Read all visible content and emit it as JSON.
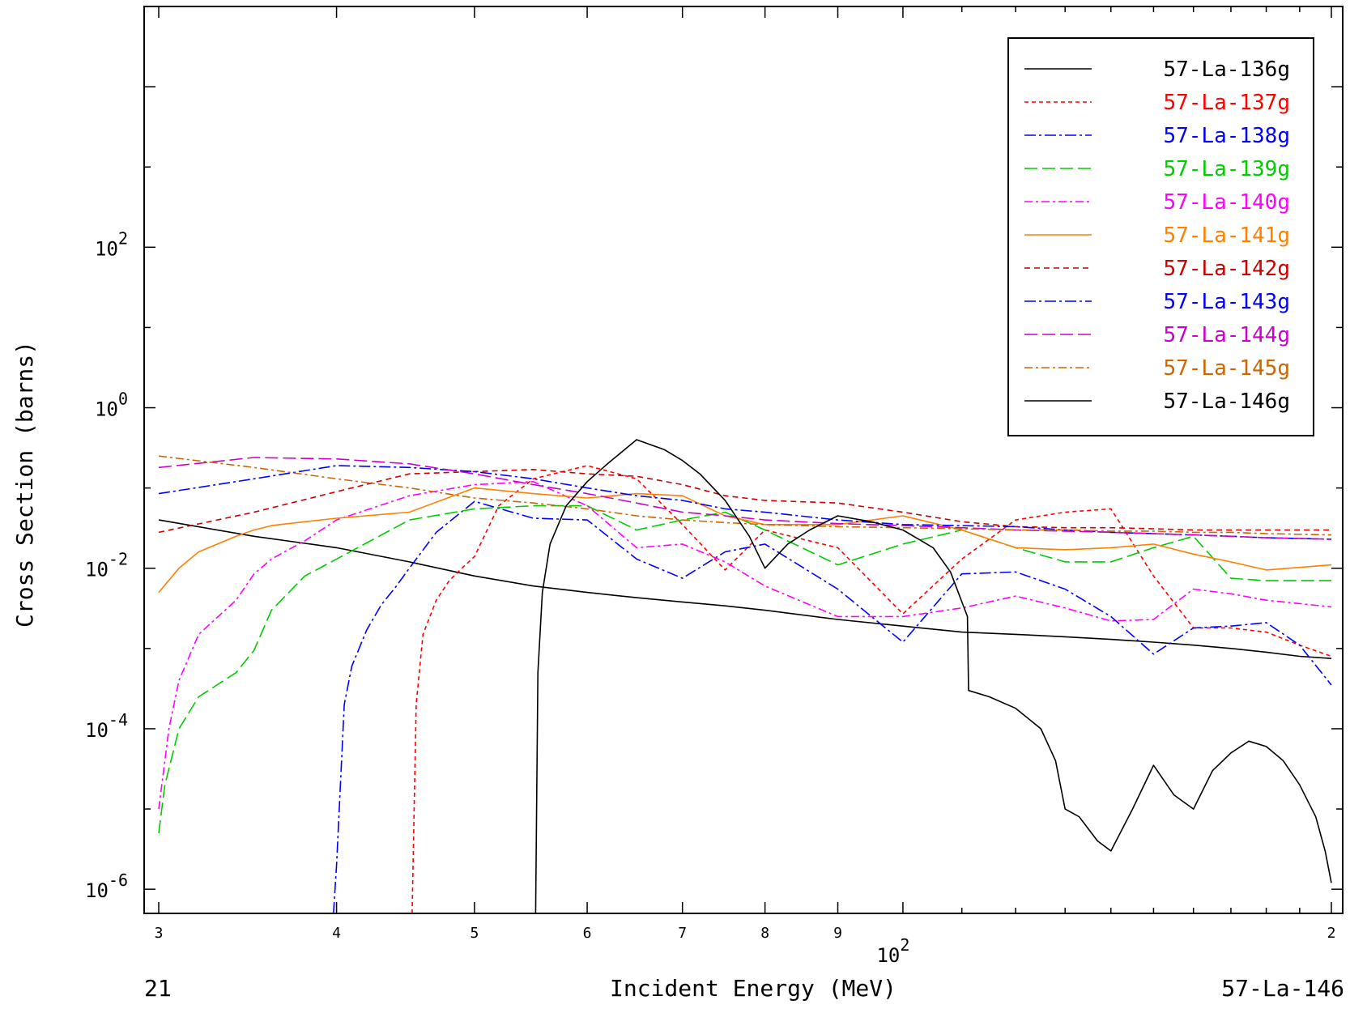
{
  "chart_data": {
    "type": "line",
    "xlabel": "Incident Energy (MeV)",
    "ylabel": "Cross Section (barns)",
    "x_scale": "log",
    "y_scale": "log",
    "xlim": [
      30,
      200
    ],
    "ylim": [
      5e-07,
      100000.0
    ],
    "x_ticks": [
      {
        "value": 30,
        "label": "3"
      },
      {
        "value": 40,
        "label": "4"
      },
      {
        "value": 50,
        "label": "5"
      },
      {
        "value": 60,
        "label": "6"
      },
      {
        "value": 70,
        "label": "7"
      },
      {
        "value": 80,
        "label": "8"
      },
      {
        "value": 90,
        "label": "9"
      },
      {
        "value": 200,
        "label": "2"
      }
    ],
    "x_decade_label": {
      "value": 100,
      "base": "10",
      "exp": "2"
    },
    "y_ticks": [
      {
        "value": 1e-06,
        "base": "10",
        "exp": "-6"
      },
      {
        "value": 0.0001,
        "base": "10",
        "exp": "-4"
      },
      {
        "value": 0.01,
        "base": "10",
        "exp": "-2"
      },
      {
        "value": 1,
        "base": "10",
        "exp": "0"
      },
      {
        "value": 100,
        "base": "10",
        "exp": "2"
      }
    ],
    "footer_left": "21",
    "footer_right": "57-La-146",
    "grid": false,
    "legend_position": "top-right",
    "series": [
      {
        "name": "57-La-136g",
        "color": "#000000",
        "dash": "solid",
        "x": [
          30,
          35,
          40,
          45,
          50,
          55,
          60,
          65,
          70,
          75,
          80,
          90,
          100,
          110,
          120,
          130,
          140,
          150,
          160,
          170,
          180,
          190,
          200
        ],
        "y": [
          0.04,
          0.025,
          0.018,
          0.012,
          0.008,
          0.006,
          0.005,
          0.0043,
          0.0038,
          0.0034,
          0.003,
          0.0023,
          0.0019,
          0.0016,
          0.0015,
          0.0014,
          0.0013,
          0.0012,
          0.0011,
          0.001,
          0.0009,
          0.0008,
          0.00075
        ]
      },
      {
        "name": "57-La-137g",
        "color": "#ff0000",
        "dash": "5,4",
        "x": [
          45.2,
          45.5,
          46,
          47,
          48,
          49,
          50,
          52,
          55,
          60,
          65,
          70,
          75,
          80,
          90,
          100,
          110,
          120,
          130,
          140,
          150,
          160,
          170,
          180,
          190,
          200
        ],
        "y": [
          5e-07,
          0.0002,
          0.0015,
          0.004,
          0.007,
          0.01,
          0.014,
          0.06,
          0.13,
          0.19,
          0.13,
          0.035,
          0.0095,
          0.03,
          0.018,
          0.0027,
          0.013,
          0.04,
          0.05,
          0.055,
          0.008,
          0.0018,
          0.0018,
          0.0016,
          0.0011,
          0.0008
        ]
      },
      {
        "name": "57-La-138g",
        "color": "#0000ff",
        "dash": "14,4,3,4",
        "x": [
          39.8,
          40,
          40.5,
          41,
          42,
          43,
          44,
          45,
          47,
          50,
          55,
          60,
          65,
          70,
          75,
          80,
          90,
          100,
          110,
          120,
          130,
          140,
          150,
          160,
          170,
          180,
          190,
          200
        ],
        "y": [
          5e-07,
          2e-06,
          0.0002,
          0.0006,
          0.0017,
          0.0035,
          0.0058,
          0.01,
          0.028,
          0.068,
          0.042,
          0.04,
          0.013,
          0.0075,
          0.016,
          0.02,
          0.0055,
          0.0012,
          0.0085,
          0.009,
          0.0055,
          0.0025,
          0.00085,
          0.0018,
          0.0019,
          0.0021,
          0.0011,
          0.00035
        ]
      },
      {
        "name": "57-La-139g",
        "color": "#00cc00",
        "dash": "16,6",
        "x": [
          30,
          30.3,
          31,
          32,
          34,
          35,
          36,
          38,
          40,
          45,
          50,
          55,
          60,
          65,
          70,
          75,
          80,
          90,
          100,
          110,
          120,
          130,
          140,
          150,
          160,
          170,
          180,
          200
        ],
        "y": [
          5e-06,
          2e-05,
          0.0001,
          0.00025,
          0.0005,
          0.00095,
          0.003,
          0.008,
          0.013,
          0.04,
          0.055,
          0.06,
          0.06,
          0.03,
          0.04,
          0.05,
          0.03,
          0.011,
          0.02,
          0.03,
          0.018,
          0.012,
          0.012,
          0.018,
          0.025,
          0.0075,
          0.007,
          0.007
        ]
      },
      {
        "name": "57-La-140g",
        "color": "#ff00ff",
        "dash": "10,4,3,4",
        "x": [
          30,
          30.5,
          31,
          32,
          34,
          35,
          36,
          38,
          40,
          45,
          50,
          55,
          60,
          65,
          70,
          75,
          80,
          90,
          100,
          110,
          120,
          130,
          140,
          150,
          160,
          170,
          180,
          200
        ],
        "y": [
          1e-05,
          0.0001,
          0.0004,
          0.0015,
          0.004,
          0.0085,
          0.013,
          0.022,
          0.04,
          0.08,
          0.11,
          0.12,
          0.06,
          0.018,
          0.02,
          0.012,
          0.006,
          0.0025,
          0.0025,
          0.0032,
          0.0045,
          0.0032,
          0.0022,
          0.0023,
          0.0055,
          0.0048,
          0.004,
          0.0033
        ]
      },
      {
        "name": "57-La-141g",
        "color": "#ff8000",
        "dash": "solid",
        "x": [
          30,
          31,
          32,
          34,
          35,
          36,
          38,
          40,
          45,
          50,
          55,
          60,
          65,
          70,
          75,
          80,
          90,
          100,
          110,
          120,
          130,
          140,
          150,
          160,
          170,
          180,
          200
        ],
        "y": [
          0.005,
          0.01,
          0.016,
          0.025,
          0.03,
          0.034,
          0.038,
          0.042,
          0.05,
          0.1,
          0.085,
          0.075,
          0.085,
          0.08,
          0.045,
          0.035,
          0.035,
          0.045,
          0.03,
          0.018,
          0.017,
          0.018,
          0.02,
          0.015,
          0.012,
          0.0095,
          0.011
        ]
      },
      {
        "name": "57-La-142g",
        "color": "#cc0000",
        "dash": "7,5",
        "x": [
          30,
          35,
          40,
          45,
          50,
          55,
          60,
          65,
          70,
          75,
          80,
          90,
          100,
          110,
          120,
          130,
          140,
          150,
          160,
          170,
          180,
          200
        ],
        "y": [
          0.028,
          0.05,
          0.09,
          0.15,
          0.16,
          0.17,
          0.15,
          0.14,
          0.11,
          0.08,
          0.07,
          0.065,
          0.05,
          0.038,
          0.033,
          0.032,
          0.032,
          0.031,
          0.03,
          0.03,
          0.03,
          0.03
        ]
      },
      {
        "name": "57-La-143g",
        "color": "#0000ff",
        "dash": "14,4,3,4",
        "x": [
          30,
          35,
          40,
          45,
          50,
          55,
          60,
          65,
          70,
          75,
          80,
          90,
          100,
          110,
          120,
          130,
          140,
          150,
          160,
          170,
          180,
          200
        ],
        "y": [
          0.085,
          0.13,
          0.19,
          0.18,
          0.16,
          0.13,
          0.1,
          0.08,
          0.07,
          0.055,
          0.05,
          0.04,
          0.035,
          0.034,
          0.033,
          0.03,
          0.028,
          0.027,
          0.026,
          0.025,
          0.024,
          0.023
        ]
      },
      {
        "name": "57-La-144g",
        "color": "#cc00cc",
        "dash": "16,6",
        "x": [
          30,
          35,
          40,
          45,
          50,
          55,
          60,
          65,
          70,
          75,
          80,
          90,
          100,
          110,
          120,
          130,
          140,
          150,
          160,
          170,
          180,
          200
        ],
        "y": [
          0.18,
          0.24,
          0.23,
          0.2,
          0.15,
          0.11,
          0.085,
          0.065,
          0.05,
          0.045,
          0.04,
          0.036,
          0.034,
          0.032,
          0.03,
          0.029,
          0.028,
          0.027,
          0.026,
          0.025,
          0.024,
          0.023
        ]
      },
      {
        "name": "57-La-145g",
        "color": "#cc6600",
        "dash": "10,4,3,4",
        "x": [
          30,
          35,
          40,
          45,
          50,
          55,
          60,
          65,
          70,
          75,
          80,
          90,
          100,
          110,
          120,
          130,
          140,
          150,
          160,
          170,
          180,
          200
        ],
        "y": [
          0.25,
          0.18,
          0.13,
          0.1,
          0.075,
          0.065,
          0.055,
          0.045,
          0.04,
          0.037,
          0.035,
          0.033,
          0.032,
          0.031,
          0.03,
          0.03,
          0.029,
          0.029,
          0.028,
          0.028,
          0.027,
          0.026
        ]
      },
      {
        "name": "57-La-146g",
        "color": "#000000",
        "dash": "solid",
        "x": [
          55.2,
          55.4,
          55.8,
          56.5,
          58,
          60,
          62,
          65,
          68,
          70,
          72,
          75,
          78,
          80,
          83,
          86,
          90,
          95,
          100,
          105,
          108,
          111,
          111.2,
          115,
          120,
          125,
          128,
          130,
          133,
          137,
          140,
          145,
          150,
          155,
          160,
          165,
          170,
          175,
          180,
          185,
          190,
          195,
          198,
          200
        ],
        "y": [
          5e-07,
          0.0005,
          0.005,
          0.02,
          0.06,
          0.12,
          0.2,
          0.4,
          0.3,
          0.22,
          0.15,
          0.07,
          0.025,
          0.01,
          0.02,
          0.03,
          0.045,
          0.038,
          0.03,
          0.018,
          0.009,
          0.0025,
          0.0003,
          0.00025,
          0.00018,
          0.0001,
          4e-05,
          1e-05,
          8e-06,
          4e-06,
          3e-06,
          1e-05,
          3.5e-05,
          1.5e-05,
          1e-05,
          3e-05,
          5e-05,
          7e-05,
          6e-05,
          4e-05,
          2e-05,
          8e-06,
          3e-06,
          1.2e-06
        ]
      }
    ]
  }
}
